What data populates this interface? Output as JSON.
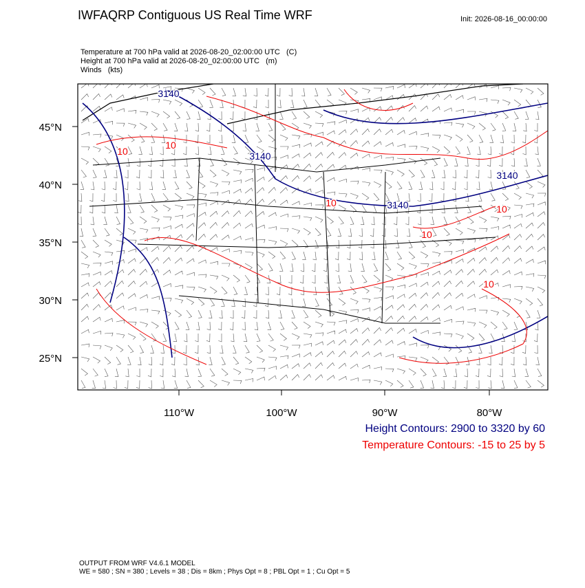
{
  "header": {
    "title": "IWFAQRP Contiguous US Real Time WRF",
    "init": "Init: 2026-08-16_00:00:00"
  },
  "fields": [
    "Temperature at 700 hPa valid at 2026-08-20_02:00:00 UTC   (C)",
    "Height at 700 hPa valid at 2026-08-20_02:00:00 UTC   (m)",
    "Winds   (kts)"
  ],
  "map": {
    "lat_labels": [
      "45°N",
      "40°N",
      "35°N",
      "30°N",
      "25°N"
    ],
    "lon_labels": [
      "110°W",
      "100°W",
      "90°W",
      "80°W"
    ],
    "height_labels": [
      "3140",
      "3140",
      "3140",
      "3140"
    ],
    "temperature_labels": [
      "10",
      "10",
      "10",
      "10",
      "10",
      "10"
    ]
  },
  "legend": [
    "Height Contours: 2900 to 3320 by 60",
    "Temperature Contours: -15 to 25 by 5"
  ],
  "footer": [
    "OUTPUT FROM WRF V4.6.1 MODEL",
    "WE = 580 ; SN = 380 ; Levels = 38 ; Dis = 8km ; Phys Opt = 8 ; PBL Opt = 1 ; Cu Opt = 5"
  ]
}
